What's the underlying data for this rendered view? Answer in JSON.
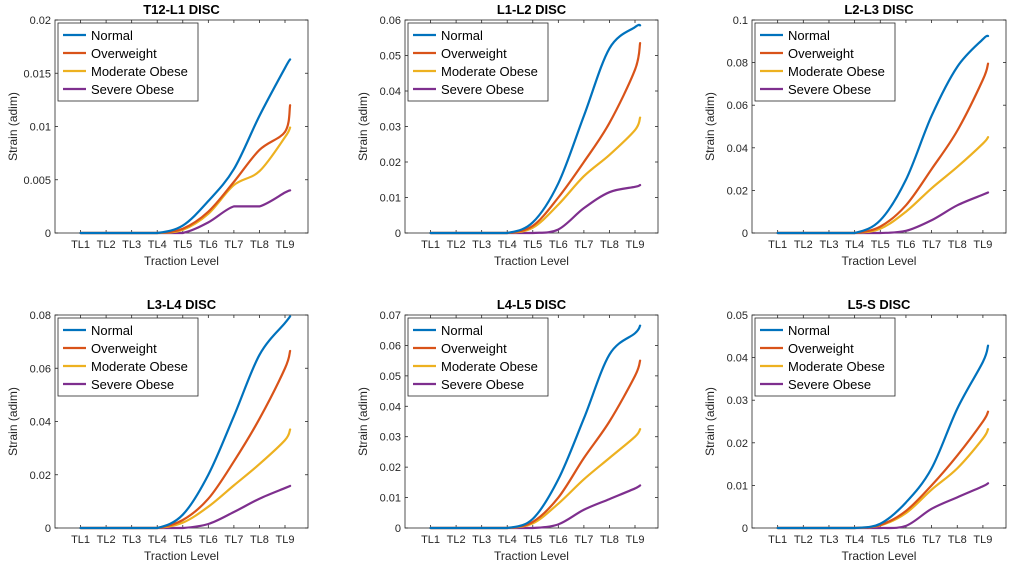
{
  "figure": {
    "xlabel": "Traction Level",
    "ylabel": "Strain (adim)",
    "categories": [
      "TL1",
      "TL2",
      "TL3",
      "TL4",
      "TL5",
      "TL6",
      "TL7",
      "TL8",
      "TL9"
    ],
    "colors": {
      "Normal": "#0072BD",
      "Overweight": "#D95319",
      "Moderate Obese": "#EDB120",
      "Severe Obese": "#7E2F8E"
    }
  },
  "chart_data": [
    {
      "type": "line",
      "title": "T12-L1 DISC",
      "xlabel": "Traction Level",
      "ylabel": "Strain (adim)",
      "categories": [
        "TL1",
        "TL2",
        "TL3",
        "TL4",
        "TL5",
        "TL6",
        "TL7",
        "TL8",
        "TL9"
      ],
      "ylim": [
        0,
        0.02
      ],
      "yticks": [
        0,
        0.005,
        0.01,
        0.015,
        0.02
      ],
      "ytick_labels": [
        "0",
        "0.005",
        "0.01",
        "0.015",
        "0.02"
      ],
      "legend": "top-left",
      "series": [
        {
          "name": "Normal",
          "values": [
            0,
            0,
            0,
            0,
            0.0007,
            0.003,
            0.006,
            0.011,
            0.0155,
            0.0163
          ]
        },
        {
          "name": "Overweight",
          "values": [
            0,
            0,
            0,
            0,
            0.0004,
            0.002,
            0.0048,
            0.0078,
            0.0095,
            0.012
          ]
        },
        {
          "name": "Moderate Obese",
          "values": [
            0,
            0,
            0,
            0,
            0.0003,
            0.0018,
            0.0045,
            0.0058,
            0.009,
            0.0099
          ]
        },
        {
          "name": "Severe Obese",
          "values": [
            0,
            0,
            0,
            0,
            0,
            0.001,
            0.0025,
            0.0025,
            0.0038,
            0.004
          ]
        }
      ],
      "x": [
        1,
        2,
        3,
        4,
        5,
        6,
        7,
        8,
        9,
        9.2
      ]
    },
    {
      "type": "line",
      "title": "L1-L2 DISC",
      "xlabel": "Traction Level",
      "ylabel": "Strain (adim)",
      "categories": [
        "TL1",
        "TL2",
        "TL3",
        "TL4",
        "TL5",
        "TL6",
        "TL7",
        "TL8",
        "TL9"
      ],
      "ylim": [
        0,
        0.06
      ],
      "yticks": [
        0,
        0.01,
        0.02,
        0.03,
        0.04,
        0.05,
        0.06
      ],
      "ytick_labels": [
        "0",
        "0.01",
        "0.02",
        "0.03",
        "0.04",
        "0.05",
        "0.06"
      ],
      "legend": "top-left",
      "series": [
        {
          "name": "Normal",
          "values": [
            0,
            0,
            0,
            0,
            0.003,
            0.014,
            0.033,
            0.052,
            0.058,
            0.0585
          ]
        },
        {
          "name": "Overweight",
          "values": [
            0,
            0,
            0,
            0,
            0.002,
            0.01,
            0.02,
            0.031,
            0.046,
            0.0535
          ]
        },
        {
          "name": "Moderate Obese",
          "values": [
            0,
            0,
            0,
            0,
            0.0015,
            0.008,
            0.016,
            0.022,
            0.029,
            0.0325
          ]
        },
        {
          "name": "Severe Obese",
          "values": [
            0,
            0,
            0,
            0,
            0,
            0.001,
            0.007,
            0.0115,
            0.013,
            0.0135
          ]
        }
      ],
      "x": [
        1,
        2,
        3,
        4,
        5,
        6,
        7,
        8,
        9,
        9.2
      ]
    },
    {
      "type": "line",
      "title": "L2-L3 DISC",
      "xlabel": "Traction Level",
      "ylabel": "Strain (adim)",
      "categories": [
        "TL1",
        "TL2",
        "TL3",
        "TL4",
        "TL5",
        "TL6",
        "TL7",
        "TL8",
        "TL9"
      ],
      "ylim": [
        0,
        0.1
      ],
      "yticks": [
        0,
        0.02,
        0.04,
        0.06,
        0.08,
        0.1
      ],
      "ytick_labels": [
        "0",
        "0.02",
        "0.04",
        "0.06",
        "0.08",
        "0.1"
      ],
      "legend": "top-left",
      "series": [
        {
          "name": "Normal",
          "values": [
            0,
            0,
            0,
            0,
            0.006,
            0.025,
            0.055,
            0.078,
            0.091,
            0.0925
          ]
        },
        {
          "name": "Overweight",
          "values": [
            0,
            0,
            0,
            0,
            0.003,
            0.013,
            0.03,
            0.048,
            0.072,
            0.0795
          ]
        },
        {
          "name": "Moderate Obese",
          "values": [
            0,
            0,
            0,
            0,
            0.002,
            0.01,
            0.021,
            0.031,
            0.042,
            0.045
          ]
        },
        {
          "name": "Severe Obese",
          "values": [
            0,
            0,
            0,
            0,
            0,
            0.001,
            0.006,
            0.013,
            0.018,
            0.019
          ]
        }
      ],
      "x": [
        1,
        2,
        3,
        4,
        5,
        6,
        7,
        8,
        9,
        9.2
      ]
    },
    {
      "type": "line",
      "title": "L3-L4 DISC",
      "xlabel": "Traction Level",
      "ylabel": "Strain (adim)",
      "categories": [
        "TL1",
        "TL2",
        "TL3",
        "TL4",
        "TL5",
        "TL6",
        "TL7",
        "TL8",
        "TL9"
      ],
      "ylim": [
        0,
        0.08
      ],
      "yticks": [
        0,
        0.02,
        0.04,
        0.06,
        0.08
      ],
      "ytick_labels": [
        "0",
        "0.02",
        "0.04",
        "0.06",
        "0.08"
      ],
      "legend": "top-left",
      "series": [
        {
          "name": "Normal",
          "values": [
            0,
            0,
            0,
            0,
            0.005,
            0.02,
            0.042,
            0.065,
            0.077,
            0.0795
          ]
        },
        {
          "name": "Overweight",
          "values": [
            0,
            0,
            0,
            0,
            0.003,
            0.011,
            0.025,
            0.041,
            0.06,
            0.0665
          ]
        },
        {
          "name": "Moderate Obese",
          "values": [
            0,
            0,
            0,
            0,
            0.002,
            0.008,
            0.016,
            0.024,
            0.033,
            0.037
          ]
        },
        {
          "name": "Severe Obese",
          "values": [
            0,
            0,
            0,
            0,
            0,
            0.0015,
            0.006,
            0.011,
            0.015,
            0.0158
          ]
        }
      ],
      "x": [
        1,
        2,
        3,
        4,
        5,
        6,
        7,
        8,
        9,
        9.2
      ]
    },
    {
      "type": "line",
      "title": "L4-L5 DISC",
      "xlabel": "Traction Level",
      "ylabel": "Strain (adim)",
      "categories": [
        "TL1",
        "TL2",
        "TL3",
        "TL4",
        "TL5",
        "TL6",
        "TL7",
        "TL8",
        "TL9"
      ],
      "ylim": [
        0,
        0.07
      ],
      "yticks": [
        0,
        0.01,
        0.02,
        0.03,
        0.04,
        0.05,
        0.06,
        0.07
      ],
      "ytick_labels": [
        "0",
        "0.01",
        "0.02",
        "0.03",
        "0.04",
        "0.05",
        "0.06",
        "0.07"
      ],
      "legend": "top-left",
      "series": [
        {
          "name": "Normal",
          "values": [
            0,
            0,
            0,
            0,
            0.003,
            0.016,
            0.036,
            0.057,
            0.064,
            0.0665
          ]
        },
        {
          "name": "Overweight",
          "values": [
            0,
            0,
            0,
            0,
            0.002,
            0.01,
            0.023,
            0.035,
            0.05,
            0.055
          ]
        },
        {
          "name": "Moderate Obese",
          "values": [
            0,
            0,
            0,
            0,
            0.0015,
            0.008,
            0.016,
            0.023,
            0.03,
            0.0325
          ]
        },
        {
          "name": "Severe Obese",
          "values": [
            0,
            0,
            0,
            0,
            0,
            0.0012,
            0.006,
            0.0095,
            0.013,
            0.014
          ]
        }
      ],
      "x": [
        1,
        2,
        3,
        4,
        5,
        6,
        7,
        8,
        9,
        9.2
      ]
    },
    {
      "type": "line",
      "title": "L5-S DISC",
      "xlabel": "Traction Level",
      "ylabel": "Strain (adim)",
      "categories": [
        "TL1",
        "TL2",
        "TL3",
        "TL4",
        "TL5",
        "TL6",
        "TL7",
        "TL8",
        "TL9"
      ],
      "ylim": [
        0,
        0.05
      ],
      "yticks": [
        0,
        0.01,
        0.02,
        0.03,
        0.04,
        0.05
      ],
      "ytick_labels": [
        "0",
        "0.01",
        "0.02",
        "0.03",
        "0.04",
        "0.05"
      ],
      "legend": "top-left",
      "series": [
        {
          "name": "Normal",
          "values": [
            0,
            0,
            0,
            0,
            0.001,
            0.006,
            0.014,
            0.028,
            0.039,
            0.0428
          ]
        },
        {
          "name": "Overweight",
          "values": [
            0,
            0,
            0,
            0,
            0.0007,
            0.004,
            0.01,
            0.017,
            0.025,
            0.0273
          ]
        },
        {
          "name": "Moderate Obese",
          "values": [
            0,
            0,
            0,
            0,
            0.0006,
            0.0035,
            0.009,
            0.014,
            0.021,
            0.0232
          ]
        },
        {
          "name": "Severe Obese",
          "values": [
            0,
            0,
            0,
            0,
            0,
            0.0005,
            0.0045,
            0.0072,
            0.0098,
            0.0105
          ]
        }
      ],
      "x": [
        1,
        2,
        3,
        4,
        5,
        6,
        7,
        8,
        9,
        9.2
      ]
    }
  ]
}
